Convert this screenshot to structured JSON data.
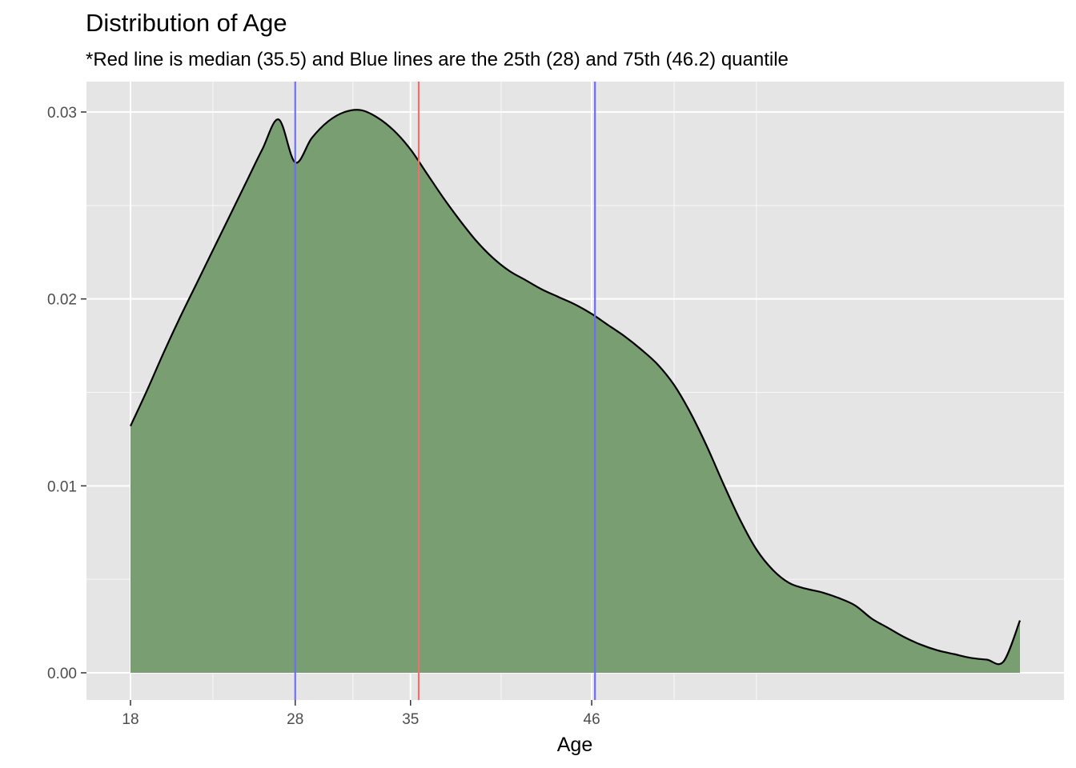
{
  "chart_data": {
    "type": "area",
    "title": "Distribution of Age",
    "subtitle": "*Red line is median (35.5) and Blue lines are the 25th (28) and 75th (46.2) quantile",
    "xlabel": "Age",
    "ylabel": "",
    "xlim": [
      18,
      72
    ],
    "ylim": [
      0,
      0.03
    ],
    "x_ticks": [
      18,
      28,
      35,
      46
    ],
    "y_ticks": [
      0.0,
      0.01,
      0.02,
      0.03
    ],
    "y_tick_labels": [
      "0.00",
      "0.01",
      "0.02",
      "0.03"
    ],
    "x_minor_gridlines": [
      23,
      31.5,
      40.5,
      51,
      56
    ],
    "y_minor_gridlines": [
      0.005,
      0.015,
      0.025
    ],
    "grid": true,
    "legend": "none",
    "density": {
      "x": [
        18,
        19,
        20,
        21,
        22,
        23,
        24,
        25,
        26,
        27,
        28,
        29,
        30,
        31,
        32,
        33,
        34,
        35,
        36,
        37,
        38,
        39,
        40,
        41,
        42,
        43,
        44,
        45,
        46,
        47,
        48,
        49,
        50,
        51,
        52,
        53,
        54,
        55,
        56,
        57,
        58,
        59,
        60,
        61,
        62,
        63,
        64,
        65,
        66,
        67,
        68,
        69,
        70,
        71,
        72
      ],
      "y": [
        0.0132,
        0.0151,
        0.0171,
        0.019,
        0.0208,
        0.0226,
        0.0244,
        0.0262,
        0.028,
        0.0296,
        0.0273,
        0.0286,
        0.0295,
        0.03,
        0.0301,
        0.0297,
        0.029,
        0.028,
        0.0267,
        0.0254,
        0.0242,
        0.0231,
        0.0222,
        0.0215,
        0.021,
        0.0205,
        0.0201,
        0.0197,
        0.0192,
        0.0186,
        0.018,
        0.0173,
        0.0165,
        0.0154,
        0.0139,
        0.0121,
        0.0101,
        0.0082,
        0.0066,
        0.0055,
        0.0048,
        0.0045,
        0.0043,
        0.004,
        0.0036,
        0.0029,
        0.0024,
        0.0019,
        0.0015,
        0.0012,
        0.001,
        0.0008,
        0.0007,
        0.0006,
        0.0028
      ]
    },
    "reference_lines": [
      {
        "name": "25th quantile",
        "x": 28,
        "color": "#6e6ef5"
      },
      {
        "name": "median",
        "x": 35.5,
        "color": "#ee6f6f"
      },
      {
        "name": "75th quantile",
        "x": 46.2,
        "color": "#6e6ef5"
      }
    ],
    "colors": {
      "fill": "#789e72",
      "outline": "#000000",
      "panel": "#e5e5e5",
      "grid": "#ffffff"
    }
  }
}
